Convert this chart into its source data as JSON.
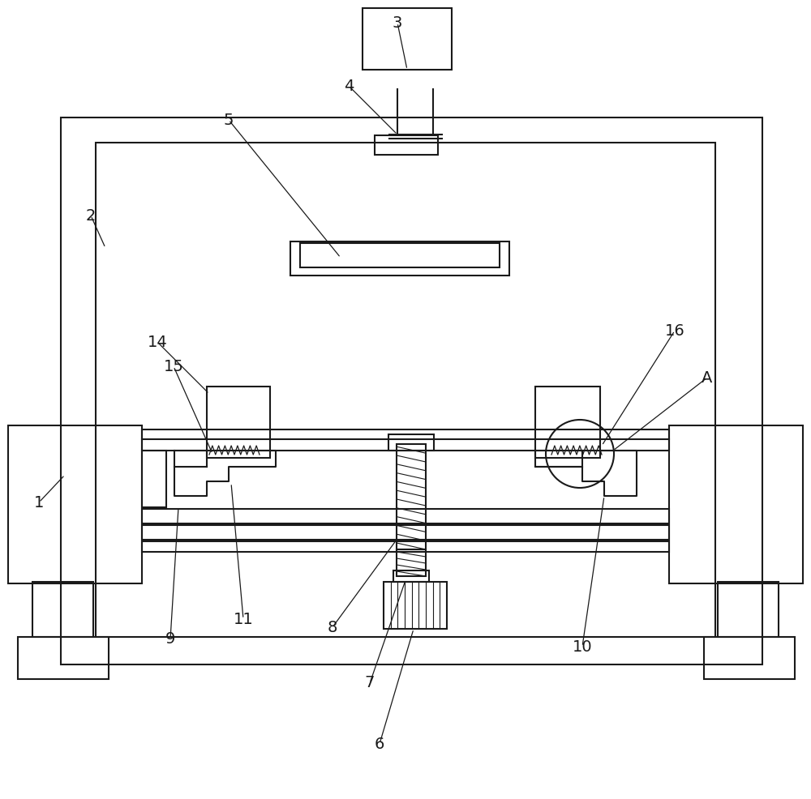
{
  "bg_color": "#ffffff",
  "line_color": "#1a1a1a",
  "lw": 1.5,
  "lw_thin": 0.9,
  "figsize": [
    10.0,
    9.86
  ],
  "dpi": 100
}
